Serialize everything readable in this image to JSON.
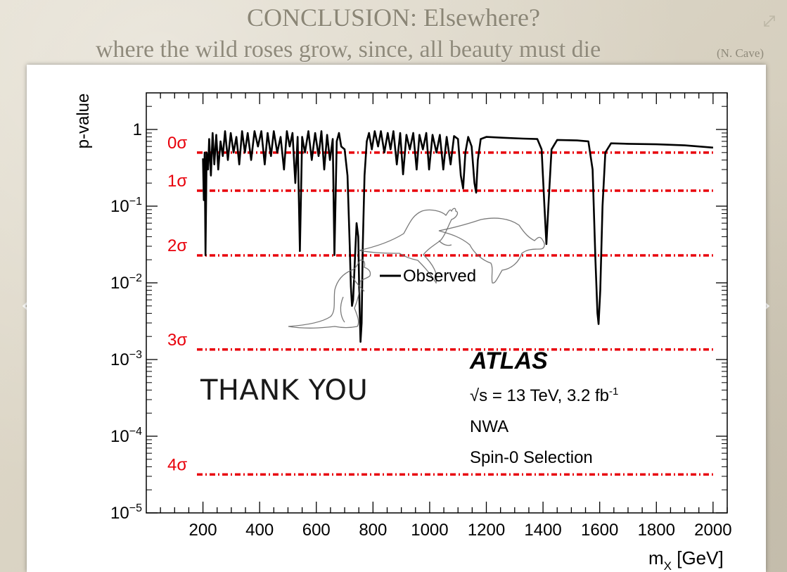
{
  "slide": {
    "title": "CONCLUSION: Elsewhere?",
    "subtitle": "where the wild roses grow, since, all beauty must die",
    "attribution": "(N. Cave)",
    "thank_you": "THANK YOU"
  },
  "icons": {
    "expand": "expand-icon",
    "prev": "chevron-left-icon",
    "next": "chevron-right-icon",
    "kangaroo": "kangaroo-icon"
  },
  "chart_data": {
    "type": "line",
    "ylabel": "p-value",
    "xlabel_main": "m",
    "xlabel_sub": "X",
    "xlabel_unit": " [GeV]",
    "xlim": [
      0,
      2050
    ],
    "ylog": true,
    "ylim": [
      1e-05,
      3
    ],
    "x_ticks": [
      200,
      400,
      600,
      800,
      1000,
      1200,
      1400,
      1600,
      1800,
      2000
    ],
    "y_ticks": [
      {
        "value": 1,
        "base": "1",
        "exp": ""
      },
      {
        "value": 0.1,
        "base": "10",
        "exp": "−1"
      },
      {
        "value": 0.01,
        "base": "10",
        "exp": "−2"
      },
      {
        "value": 0.001,
        "base": "10",
        "exp": "−3"
      },
      {
        "value": 0.0001,
        "base": "10",
        "exp": "−4"
      },
      {
        "value": 1e-05,
        "base": "10",
        "exp": "−5"
      }
    ],
    "sigma_lines": [
      {
        "label": "0σ",
        "p": 0.5
      },
      {
        "label": "1σ",
        "p": 0.159
      },
      {
        "label": "2σ",
        "p": 0.0228
      },
      {
        "label": "3σ",
        "p": 0.00135
      },
      {
        "label": "4σ",
        "p": 3.17e-05
      }
    ],
    "sigma_color": "#e8000b",
    "series": [
      {
        "name": "Observed",
        "color": "#000000",
        "points": [
          [
            200,
            0.42
          ],
          [
            203,
            0.12
          ],
          [
            206,
            0.5
          ],
          [
            209,
            0.023
          ],
          [
            213,
            0.5
          ],
          [
            218,
            0.3
          ],
          [
            222,
            0.75
          ],
          [
            228,
            0.25
          ],
          [
            234,
            0.9
          ],
          [
            240,
            0.35
          ],
          [
            247,
            0.85
          ],
          [
            254,
            0.3
          ],
          [
            262,
            0.7
          ],
          [
            270,
            0.45
          ],
          [
            278,
            0.95
          ],
          [
            288,
            0.4
          ],
          [
            298,
            0.9
          ],
          [
            308,
            0.5
          ],
          [
            318,
            0.8
          ],
          [
            328,
            0.35
          ],
          [
            338,
            0.95
          ],
          [
            348,
            0.5
          ],
          [
            358,
            0.9
          ],
          [
            370,
            0.4
          ],
          [
            382,
            0.95
          ],
          [
            394,
            0.6
          ],
          [
            406,
            0.95
          ],
          [
            418,
            0.35
          ],
          [
            428,
            0.9
          ],
          [
            440,
            0.45
          ],
          [
            450,
            0.95
          ],
          [
            462,
            0.5
          ],
          [
            474,
            0.8
          ],
          [
            486,
            0.3
          ],
          [
            496,
            0.95
          ],
          [
            506,
            0.6
          ],
          [
            516,
            0.9
          ],
          [
            526,
            0.2
          ],
          [
            534,
            0.8
          ],
          [
            542,
            0.026
          ],
          [
            550,
            0.8
          ],
          [
            560,
            0.5
          ],
          [
            572,
            0.95
          ],
          [
            584,
            0.4
          ],
          [
            596,
            0.9
          ],
          [
            608,
            0.45
          ],
          [
            618,
            0.95
          ],
          [
            628,
            0.3
          ],
          [
            638,
            0.85
          ],
          [
            648,
            0.4
          ],
          [
            658,
            0.75
          ],
          [
            664,
            0.023
          ],
          [
            672,
            0.7
          ],
          [
            680,
            0.9
          ],
          [
            688,
            0.6
          ],
          [
            700,
            0.55
          ],
          [
            710,
            0.25
          ],
          [
            718,
            0.03
          ],
          [
            722,
            0.009
          ],
          [
            726,
            0.005
          ],
          [
            730,
            0.006
          ],
          [
            736,
            0.02
          ],
          [
            742,
            0.06
          ],
          [
            748,
            0.04
          ],
          [
            752,
            0.006
          ],
          [
            756,
            0.0017
          ],
          [
            760,
            0.003
          ],
          [
            764,
            0.03
          ],
          [
            770,
            0.25
          ],
          [
            778,
            0.7
          ],
          [
            786,
            0.9
          ],
          [
            796,
            0.55
          ],
          [
            806,
            0.95
          ],
          [
            818,
            0.6
          ],
          [
            828,
            0.95
          ],
          [
            840,
            0.5
          ],
          [
            852,
            0.9
          ],
          [
            862,
            0.55
          ],
          [
            872,
            0.95
          ],
          [
            884,
            0.35
          ],
          [
            896,
            0.9
          ],
          [
            906,
            0.26
          ],
          [
            918,
            0.85
          ],
          [
            930,
            0.55
          ],
          [
            942,
            0.9
          ],
          [
            954,
            0.3
          ],
          [
            964,
            0.85
          ],
          [
            976,
            0.55
          ],
          [
            988,
            0.9
          ],
          [
            998,
            0.3
          ],
          [
            1010,
            0.85
          ],
          [
            1024,
            0.5
          ],
          [
            1036,
            0.85
          ],
          [
            1048,
            0.3
          ],
          [
            1060,
            0.8
          ],
          [
            1074,
            0.35
          ],
          [
            1086,
            0.82
          ],
          [
            1100,
            0.75
          ],
          [
            1110,
            0.25
          ],
          [
            1118,
            0.17
          ],
          [
            1126,
            0.5
          ],
          [
            1136,
            0.8
          ],
          [
            1148,
            0.6
          ],
          [
            1158,
            0.2
          ],
          [
            1164,
            0.15
          ],
          [
            1170,
            0.4
          ],
          [
            1180,
            0.75
          ],
          [
            1200,
            0.8
          ],
          [
            1260,
            0.78
          ],
          [
            1330,
            0.76
          ],
          [
            1380,
            0.75
          ],
          [
            1395,
            0.55
          ],
          [
            1405,
            0.1
          ],
          [
            1412,
            0.032
          ],
          [
            1420,
            0.12
          ],
          [
            1430,
            0.55
          ],
          [
            1450,
            0.73
          ],
          [
            1520,
            0.72
          ],
          [
            1560,
            0.7
          ],
          [
            1575,
            0.3
          ],
          [
            1585,
            0.02
          ],
          [
            1592,
            0.004
          ],
          [
            1596,
            0.0029
          ],
          [
            1602,
            0.008
          ],
          [
            1610,
            0.1
          ],
          [
            1620,
            0.5
          ],
          [
            1640,
            0.66
          ],
          [
            1700,
            0.65
          ],
          [
            1800,
            0.64
          ],
          [
            1900,
            0.62
          ],
          [
            2000,
            0.58
          ]
        ]
      }
    ],
    "legend": "Observed",
    "annotations": {
      "experiment": "ATLAS",
      "energy_prefix": "√s = 13 TeV, 3.2 fb",
      "energy_sup": "-1",
      "model": "NWA",
      "selection": "Spin-0 Selection"
    }
  }
}
